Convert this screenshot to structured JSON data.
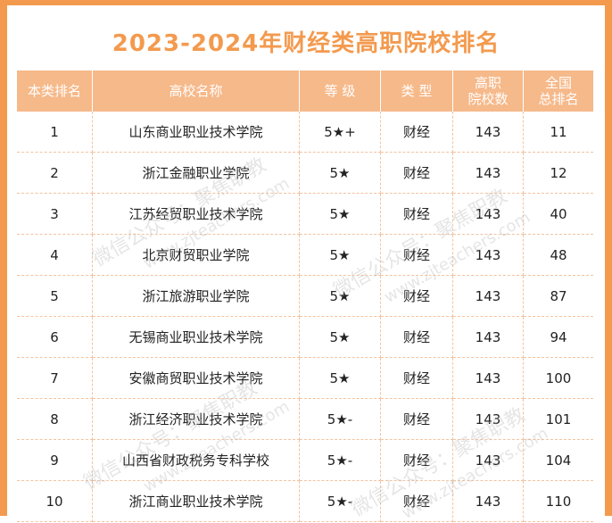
{
  "title": "2023-2024年财经类高职院校排名",
  "headers": {
    "c1": "本类排名",
    "c2": "高校名称",
    "c3": "等 级",
    "c4": "类 型",
    "c5a": "高职",
    "c5b": "院校数",
    "c6a": "全国",
    "c6b": "总排名"
  },
  "rows": [
    {
      "rank": "1",
      "name": "山东商业职业技术学院",
      "grade": "5★+",
      "type": "财经",
      "count": "143",
      "overall": "11"
    },
    {
      "rank": "2",
      "name": "浙江金融职业学院",
      "grade": "5★",
      "type": "财经",
      "count": "143",
      "overall": "12"
    },
    {
      "rank": "3",
      "name": "江苏经贸职业技术学院",
      "grade": "5★",
      "type": "财经",
      "count": "143",
      "overall": "40"
    },
    {
      "rank": "4",
      "name": "北京财贸职业学院",
      "grade": "5★",
      "type": "财经",
      "count": "143",
      "overall": "48"
    },
    {
      "rank": "5",
      "name": "浙江旅游职业学院",
      "grade": "5★",
      "type": "财经",
      "count": "143",
      "overall": "87"
    },
    {
      "rank": "6",
      "name": "无锡商业职业技术学院",
      "grade": "5★",
      "type": "财经",
      "count": "143",
      "overall": "94"
    },
    {
      "rank": "7",
      "name": "安徽商贸职业技术学院",
      "grade": "5★",
      "type": "财经",
      "count": "143",
      "overall": "100"
    },
    {
      "rank": "8",
      "name": "浙江经济职业技术学院",
      "grade": "5★-",
      "type": "财经",
      "count": "143",
      "overall": "101"
    },
    {
      "rank": "9",
      "name": "山西省财政税务专科学校",
      "grade": "5★-",
      "type": "财经",
      "count": "143",
      "overall": "104"
    },
    {
      "rank": "10",
      "name": "浙江商业职业技术学院",
      "grade": "5★-",
      "type": "财经",
      "count": "143",
      "overall": "110"
    }
  ],
  "watermark": {
    "line1": "微信公众号：聚焦职教",
    "line2": "www.zjteachers.com"
  }
}
